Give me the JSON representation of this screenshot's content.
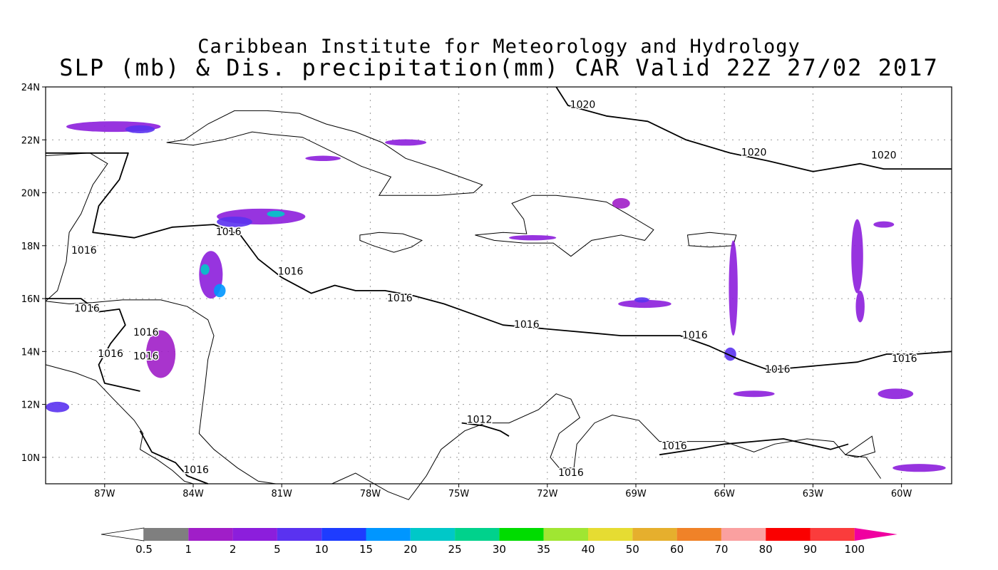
{
  "header": {
    "title_line1": "Caribbean Institute for Meteorology and Hydrology",
    "title_line2": "SLP (mb) & Dis. precipitation(mm) CAR Valid 22Z 27/02 2017"
  },
  "map": {
    "extent": {
      "lon_min": -89.0,
      "lon_max": -58.3,
      "lat_min": 9.0,
      "lat_max": 24.0
    },
    "x_ticks": [
      {
        "lon": -87,
        "label": "87W"
      },
      {
        "lon": -84,
        "label": "84W"
      },
      {
        "lon": -81,
        "label": "81W"
      },
      {
        "lon": -78,
        "label": "78W"
      },
      {
        "lon": -75,
        "label": "75W"
      },
      {
        "lon": -72,
        "label": "72W"
      },
      {
        "lon": -69,
        "label": "69W"
      },
      {
        "lon": -66,
        "label": "66W"
      },
      {
        "lon": -63,
        "label": "63W"
      },
      {
        "lon": -60,
        "label": "60W"
      }
    ],
    "y_ticks": [
      {
        "lat": 10,
        "label": "10N"
      },
      {
        "lat": 12,
        "label": "12N"
      },
      {
        "lat": 14,
        "label": "14N"
      },
      {
        "lat": 16,
        "label": "16N"
      },
      {
        "lat": 18,
        "label": "18N"
      },
      {
        "lat": 20,
        "label": "20N"
      },
      {
        "lat": 22,
        "label": "22N"
      },
      {
        "lat": 24,
        "label": "24N"
      }
    ],
    "isobars": [
      {
        "value": 1020,
        "points": [
          [
            -71.7,
            24
          ],
          [
            -71.3,
            23.3
          ],
          [
            -70.0,
            22.9
          ],
          [
            -68.6,
            22.7
          ],
          [
            -67.3,
            22.0
          ],
          [
            -65.8,
            21.5
          ],
          [
            -64.5,
            21.2
          ],
          [
            -63.0,
            20.8
          ],
          [
            -61.4,
            21.1
          ],
          [
            -60.6,
            20.9
          ],
          [
            -59.5,
            20.9
          ],
          [
            -58.3,
            20.9
          ]
        ]
      },
      {
        "value": 1016,
        "points": [
          [
            -89,
            21.5
          ],
          [
            -86.2,
            21.5
          ],
          [
            -86.5,
            20.5
          ],
          [
            -87.2,
            19.5
          ],
          [
            -87.4,
            18.5
          ],
          [
            -86.0,
            18.3
          ],
          [
            -84.7,
            18.7
          ],
          [
            -83.3,
            18.8
          ],
          [
            -82.4,
            18.4
          ],
          [
            -81.8,
            17.5
          ],
          [
            -81.0,
            16.8
          ],
          [
            -80.0,
            16.2
          ],
          [
            -79.2,
            16.5
          ],
          [
            -78.5,
            16.3
          ],
          [
            -77.5,
            16.3
          ],
          [
            -76.5,
            16.1
          ],
          [
            -75.5,
            15.8
          ],
          [
            -74.5,
            15.4
          ],
          [
            -73.5,
            15.0
          ],
          [
            -72.5,
            14.9
          ],
          [
            -71.5,
            14.8
          ],
          [
            -70.5,
            14.7
          ],
          [
            -69.5,
            14.6
          ],
          [
            -68.5,
            14.6
          ],
          [
            -67.5,
            14.6
          ],
          [
            -66.5,
            14.2
          ],
          [
            -65.5,
            13.7
          ],
          [
            -64.5,
            13.3
          ],
          [
            -63.5,
            13.4
          ],
          [
            -62.5,
            13.5
          ],
          [
            -61.5,
            13.6
          ],
          [
            -60.5,
            13.9
          ],
          [
            -59.5,
            13.9
          ],
          [
            -58.3,
            14.0
          ]
        ]
      },
      {
        "value": 1016,
        "points": [
          [
            -89,
            16.0
          ],
          [
            -87.8,
            16.0
          ],
          [
            -87.2,
            15.5
          ],
          [
            -86.5,
            15.6
          ],
          [
            -86.3,
            15.0
          ],
          [
            -86.8,
            14.3
          ],
          [
            -87.2,
            13.5
          ],
          [
            -87.0,
            12.8
          ],
          [
            -85.8,
            12.5
          ]
        ]
      },
      {
        "value": 1016,
        "points": [
          [
            -85.8,
            11.0
          ],
          [
            -85.4,
            10.2
          ],
          [
            -84.6,
            9.8
          ],
          [
            -84.2,
            9.3
          ],
          [
            -83.5,
            9.0
          ]
        ]
      },
      {
        "value": 1016,
        "points": [
          [
            -68.2,
            10.1
          ],
          [
            -67.0,
            10.3
          ],
          [
            -66.0,
            10.5
          ],
          [
            -65.0,
            10.6
          ],
          [
            -64.0,
            10.7
          ],
          [
            -63.2,
            10.5
          ],
          [
            -62.4,
            10.3
          ],
          [
            -61.8,
            10.5
          ]
        ]
      },
      {
        "value": 1012,
        "points": [
          [
            -74.9,
            11.3
          ],
          [
            -74.2,
            11.2
          ],
          [
            -73.6,
            11.0
          ],
          [
            -73.3,
            10.8
          ]
        ]
      }
    ],
    "isobar_labels": [
      {
        "text": "1020",
        "lon": -70.8,
        "lat": 23.2
      },
      {
        "text": "1020",
        "lon": -65.0,
        "lat": 21.4
      },
      {
        "text": "1020",
        "lon": -60.6,
        "lat": 21.3
      },
      {
        "text": "1016",
        "lon": -87.7,
        "lat": 17.7
      },
      {
        "text": "1016",
        "lon": -82.8,
        "lat": 18.4
      },
      {
        "text": "1016",
        "lon": -80.7,
        "lat": 16.9
      },
      {
        "text": "1016",
        "lon": -87.6,
        "lat": 15.5
      },
      {
        "text": "1016",
        "lon": -77.0,
        "lat": 15.9
      },
      {
        "text": "1016",
        "lon": -85.6,
        "lat": 14.6
      },
      {
        "text": "1016",
        "lon": -72.7,
        "lat": 14.9
      },
      {
        "text": "1016",
        "lon": -86.8,
        "lat": 13.8
      },
      {
        "text": "1016",
        "lon": -85.6,
        "lat": 13.7
      },
      {
        "text": "1016",
        "lon": -67.0,
        "lat": 14.5
      },
      {
        "text": "1016",
        "lon": -64.2,
        "lat": 13.2
      },
      {
        "text": "1016",
        "lon": -59.9,
        "lat": 13.6
      },
      {
        "text": "1012",
        "lon": -74.3,
        "lat": 11.3
      },
      {
        "text": "1016",
        "lon": -67.7,
        "lat": 10.3
      },
      {
        "text": "1016",
        "lon": -83.9,
        "lat": 9.4
      },
      {
        "text": "1016",
        "lon": -71.2,
        "lat": 9.3
      }
    ],
    "coastlines": [
      {
        "name": "cuba",
        "closed": true,
        "points": [
          [
            -84.9,
            21.9
          ],
          [
            -84.3,
            22.0
          ],
          [
            -83.5,
            22.6
          ],
          [
            -82.6,
            23.1
          ],
          [
            -81.5,
            23.1
          ],
          [
            -80.4,
            23.0
          ],
          [
            -79.5,
            22.6
          ],
          [
            -78.5,
            22.3
          ],
          [
            -77.6,
            21.9
          ],
          [
            -76.8,
            21.3
          ],
          [
            -75.7,
            20.9
          ],
          [
            -74.2,
            20.3
          ],
          [
            -74.5,
            20.0
          ],
          [
            -75.7,
            19.9
          ],
          [
            -76.8,
            19.9
          ],
          [
            -77.7,
            19.9
          ],
          [
            -77.3,
            20.6
          ],
          [
            -78.3,
            21.0
          ],
          [
            -79.2,
            21.5
          ],
          [
            -80.3,
            22.1
          ],
          [
            -81.3,
            22.2
          ],
          [
            -82.0,
            22.3
          ],
          [
            -83.0,
            22.0
          ],
          [
            -84.0,
            21.8
          ]
        ]
      },
      {
        "name": "jamaica",
        "closed": true,
        "points": [
          [
            -78.35,
            18.4
          ],
          [
            -77.7,
            18.5
          ],
          [
            -76.9,
            18.45
          ],
          [
            -76.25,
            18.2
          ],
          [
            -76.6,
            17.95
          ],
          [
            -77.2,
            17.75
          ],
          [
            -77.9,
            18.0
          ],
          [
            -78.35,
            18.2
          ]
        ]
      },
      {
        "name": "hispaniola",
        "closed": true,
        "points": [
          [
            -74.45,
            18.4
          ],
          [
            -73.5,
            18.5
          ],
          [
            -72.7,
            18.45
          ],
          [
            -72.8,
            19.0
          ],
          [
            -73.2,
            19.6
          ],
          [
            -72.5,
            19.9
          ],
          [
            -71.7,
            19.9
          ],
          [
            -70.9,
            19.8
          ],
          [
            -70.0,
            19.65
          ],
          [
            -69.3,
            19.2
          ],
          [
            -68.4,
            18.6
          ],
          [
            -68.7,
            18.2
          ],
          [
            -69.5,
            18.4
          ],
          [
            -70.5,
            18.2
          ],
          [
            -71.2,
            17.6
          ],
          [
            -71.8,
            18.1
          ],
          [
            -72.8,
            18.1
          ],
          [
            -73.8,
            18.2
          ]
        ]
      },
      {
        "name": "puerto-rico",
        "closed": true,
        "points": [
          [
            -67.25,
            18.4
          ],
          [
            -66.5,
            18.5
          ],
          [
            -65.6,
            18.4
          ],
          [
            -65.7,
            18.0
          ],
          [
            -66.5,
            17.95
          ],
          [
            -67.2,
            18.0
          ]
        ]
      },
      {
        "name": "central-america",
        "closed": false,
        "points": [
          [
            -89.0,
            21.4
          ],
          [
            -87.5,
            21.5
          ],
          [
            -86.9,
            21.1
          ],
          [
            -87.4,
            20.3
          ],
          [
            -87.8,
            19.2
          ],
          [
            -88.2,
            18.5
          ],
          [
            -88.3,
            17.4
          ],
          [
            -88.6,
            16.3
          ],
          [
            -89.0,
            15.9
          ]
        ]
      },
      {
        "name": "honduras-nicaragua",
        "closed": false,
        "points": [
          [
            -89.0,
            15.9
          ],
          [
            -88.2,
            15.8
          ],
          [
            -87.4,
            15.85
          ],
          [
            -86.4,
            15.95
          ],
          [
            -85.1,
            15.95
          ],
          [
            -84.2,
            15.7
          ],
          [
            -83.5,
            15.2
          ],
          [
            -83.3,
            14.6
          ],
          [
            -83.5,
            13.7
          ],
          [
            -83.6,
            12.7
          ],
          [
            -83.7,
            11.8
          ],
          [
            -83.8,
            10.9
          ],
          [
            -83.3,
            10.3
          ],
          [
            -82.5,
            9.6
          ],
          [
            -81.8,
            9.1
          ],
          [
            -81.2,
            9.0
          ]
        ]
      },
      {
        "name": "pacific-coast",
        "closed": false,
        "points": [
          [
            -89.0,
            13.5
          ],
          [
            -88.0,
            13.2
          ],
          [
            -87.3,
            12.9
          ],
          [
            -86.7,
            12.2
          ],
          [
            -86.0,
            11.4
          ],
          [
            -85.7,
            10.9
          ],
          [
            -85.8,
            10.3
          ],
          [
            -85.2,
            9.9
          ],
          [
            -84.7,
            9.5
          ],
          [
            -84.3,
            9.1
          ],
          [
            -84.0,
            9.0
          ]
        ]
      },
      {
        "name": "colombia-venezuela",
        "closed": false,
        "points": [
          [
            -79.3,
            9.0
          ],
          [
            -78.5,
            9.4
          ],
          [
            -77.4,
            8.7
          ],
          [
            -76.7,
            8.4
          ],
          [
            -76.1,
            9.3
          ],
          [
            -75.6,
            10.3
          ],
          [
            -74.8,
            11.0
          ],
          [
            -74.1,
            11.3
          ],
          [
            -73.3,
            11.3
          ],
          [
            -72.3,
            11.8
          ],
          [
            -71.7,
            12.4
          ],
          [
            -71.2,
            12.2
          ],
          [
            -70.9,
            11.5
          ],
          [
            -71.6,
            10.9
          ],
          [
            -71.9,
            10.0
          ],
          [
            -71.6,
            9.6
          ],
          [
            -71.1,
            9.6
          ],
          [
            -71.0,
            10.5
          ],
          [
            -70.4,
            11.3
          ],
          [
            -69.8,
            11.6
          ],
          [
            -68.9,
            11.4
          ],
          [
            -68.2,
            10.6
          ],
          [
            -67.0,
            10.6
          ],
          [
            -66.0,
            10.6
          ],
          [
            -65.0,
            10.2
          ],
          [
            -64.3,
            10.5
          ],
          [
            -63.2,
            10.7
          ],
          [
            -62.3,
            10.6
          ],
          [
            -61.9,
            10.1
          ],
          [
            -61.2,
            10.0
          ],
          [
            -60.7,
            9.2
          ]
        ]
      },
      {
        "name": "trinidad",
        "closed": true,
        "points": [
          [
            -61.9,
            10.1
          ],
          [
            -61.0,
            10.8
          ],
          [
            -60.9,
            10.2
          ],
          [
            -61.5,
            10.0
          ]
        ]
      }
    ]
  },
  "colorbar": {
    "labels": [
      "0.5",
      "1",
      "2",
      "5",
      "10",
      "15",
      "20",
      "25",
      "30",
      "35",
      "40",
      "50",
      "60",
      "70",
      "80",
      "90",
      "100"
    ],
    "colors": [
      "#7f7f7f",
      "#a01ec8",
      "#8c1edc",
      "#5a32f0",
      "#1e3cff",
      "#0096ff",
      "#00c8c8",
      "#00d28c",
      "#00dc00",
      "#a0e632",
      "#e6dc32",
      "#e6af2d",
      "#f08228",
      "#faa0a0",
      "#fa0000",
      "#fa3c3c"
    ],
    "under_color": "#ffffff",
    "over_color": "#f000a0"
  },
  "precipitation": [
    {
      "lon": -86.7,
      "lat": 22.5,
      "rx": 1.6,
      "ry": 0.2,
      "color": "#8c1edc"
    },
    {
      "lon": -85.8,
      "lat": 22.4,
      "rx": 0.5,
      "ry": 0.15,
      "color": "#5a32f0"
    },
    {
      "lon": -81.7,
      "lat": 19.1,
      "rx": 1.5,
      "ry": 0.3,
      "color": "#8c1edc"
    },
    {
      "lon": -82.6,
      "lat": 18.9,
      "rx": 0.6,
      "ry": 0.2,
      "color": "#5a32f0"
    },
    {
      "lon": -81.2,
      "lat": 19.2,
      "rx": 0.3,
      "ry": 0.12,
      "color": "#00c8c8"
    },
    {
      "lon": -83.4,
      "lat": 16.9,
      "rx": 0.4,
      "ry": 0.9,
      "color": "#8c1edc"
    },
    {
      "lon": -83.6,
      "lat": 17.1,
      "rx": 0.15,
      "ry": 0.2,
      "color": "#00c8c8"
    },
    {
      "lon": -83.1,
      "lat": 16.3,
      "rx": 0.2,
      "ry": 0.25,
      "color": "#0096ff"
    },
    {
      "lon": -85.1,
      "lat": 13.9,
      "rx": 0.5,
      "ry": 0.9,
      "color": "#a01ec8"
    },
    {
      "lon": -88.6,
      "lat": 11.9,
      "rx": 0.4,
      "ry": 0.2,
      "color": "#5a32f0"
    },
    {
      "lon": -65.7,
      "lat": 16.4,
      "rx": 0.15,
      "ry": 1.8,
      "color": "#8c1edc"
    },
    {
      "lon": -65.8,
      "lat": 13.9,
      "rx": 0.2,
      "ry": 0.25,
      "color": "#5a32f0"
    },
    {
      "lon": -61.5,
      "lat": 17.6,
      "rx": 0.2,
      "ry": 1.4,
      "color": "#8c1edc"
    },
    {
      "lon": -61.4,
      "lat": 15.7,
      "rx": 0.15,
      "ry": 0.6,
      "color": "#8c1edc"
    },
    {
      "lon": -68.7,
      "lat": 15.8,
      "rx": 0.9,
      "ry": 0.15,
      "color": "#8c1edc"
    },
    {
      "lon": -68.8,
      "lat": 15.95,
      "rx": 0.25,
      "ry": 0.1,
      "color": "#5a32f0"
    },
    {
      "lon": -79.6,
      "lat": 21.3,
      "rx": 0.6,
      "ry": 0.1,
      "color": "#8c1edc"
    },
    {
      "lon": -76.8,
      "lat": 21.9,
      "rx": 0.7,
      "ry": 0.12,
      "color": "#8c1edc"
    },
    {
      "lon": -72.5,
      "lat": 18.3,
      "rx": 0.8,
      "ry": 0.1,
      "color": "#8c1edc"
    },
    {
      "lon": -60.2,
      "lat": 12.4,
      "rx": 0.6,
      "ry": 0.2,
      "color": "#8c1edc"
    },
    {
      "lon": -59.4,
      "lat": 9.6,
      "rx": 0.9,
      "ry": 0.15,
      "color": "#8c1edc"
    },
    {
      "lon": -65.0,
      "lat": 12.4,
      "rx": 0.7,
      "ry": 0.12,
      "color": "#8c1edc"
    },
    {
      "lon": -69.5,
      "lat": 19.6,
      "rx": 0.3,
      "ry": 0.2,
      "color": "#a01ec8"
    },
    {
      "lon": -60.6,
      "lat": 18.8,
      "rx": 0.35,
      "ry": 0.12,
      "color": "#8c1edc"
    }
  ]
}
